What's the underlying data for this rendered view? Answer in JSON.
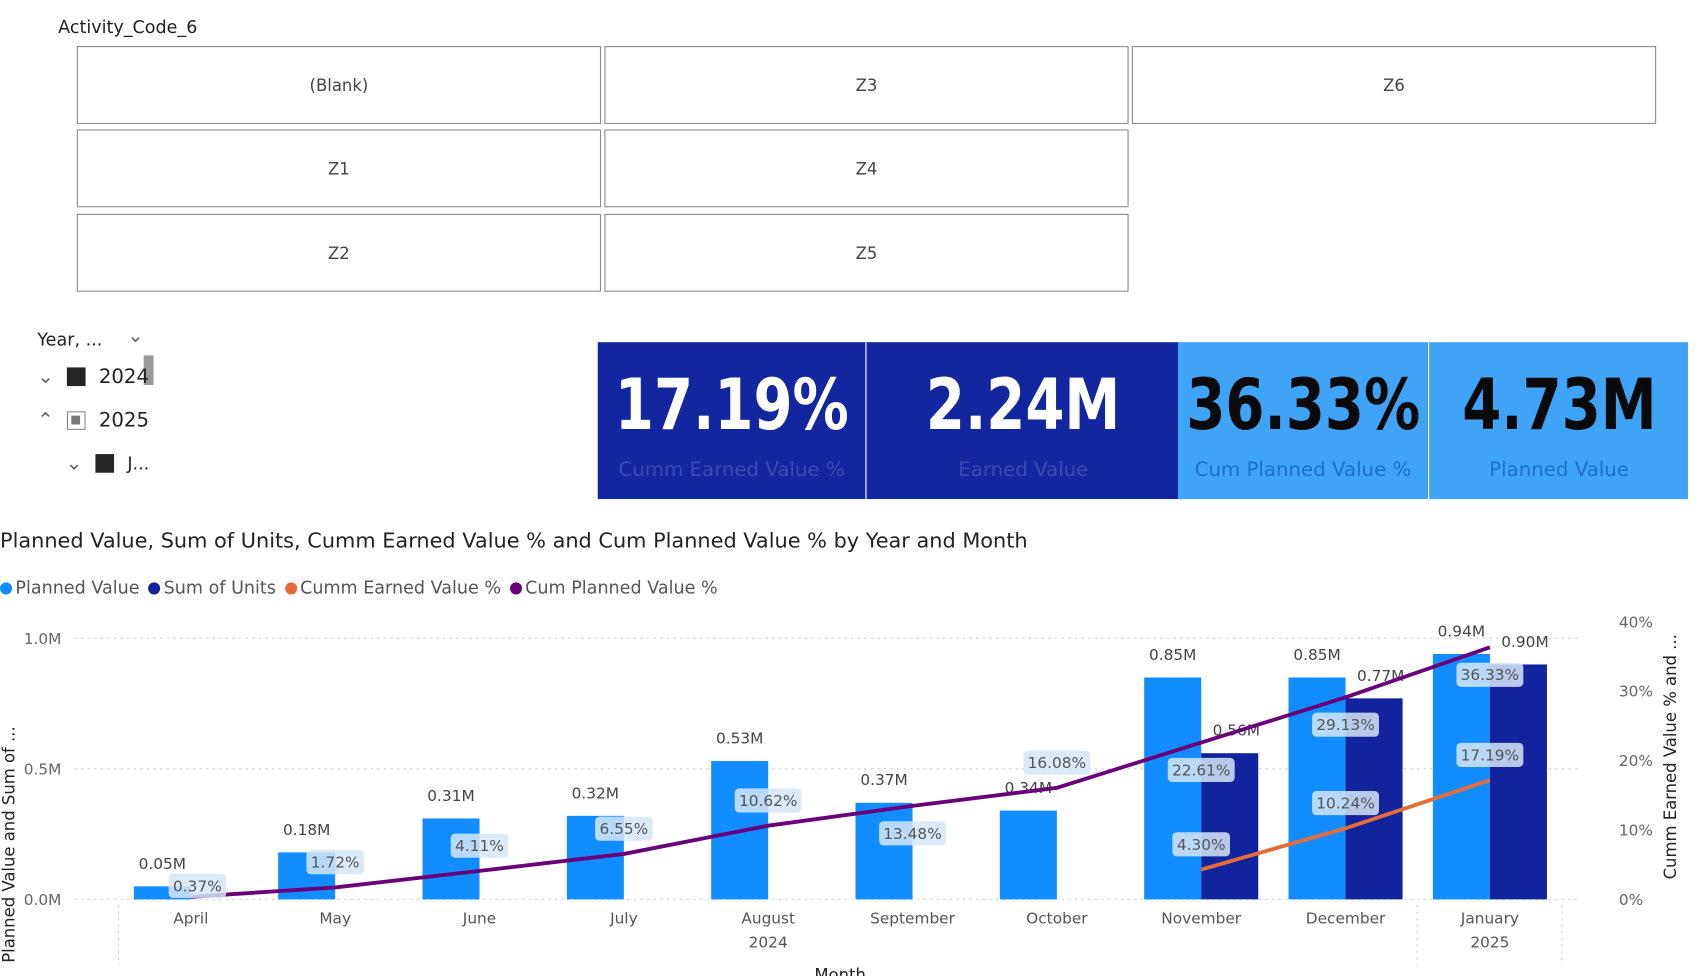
{
  "slicer": {
    "title": "Activity_Code_6",
    "items": [
      "(Blank)",
      "Z3",
      "Z6",
      "Z1",
      "Z4",
      "Z2",
      "Z5"
    ]
  },
  "hierarchy_slicer": {
    "title": "Year, ...",
    "items": [
      {
        "label": "2024",
        "state": "checked",
        "expanded": false
      },
      {
        "label": "2025",
        "state": "partial",
        "expanded": true
      },
      {
        "label": "J...",
        "state": "checked",
        "expanded": false
      }
    ]
  },
  "kpis": [
    {
      "value": "17.19%",
      "label": "Cumm Earned Value %"
    },
    {
      "value": "2.24M",
      "label": "Earned Value"
    },
    {
      "value": "36.33%",
      "label": "Cum Planned Value %"
    },
    {
      "value": "4.73M",
      "label": "Planned Value"
    }
  ],
  "colors": {
    "navy": "#1226A0",
    "light_blue": "#3FA3F7",
    "planned": "#118DFF",
    "units": "#12239E",
    "earned": "#E66C37",
    "cum_planned": "#6B007B"
  },
  "chart_data": {
    "type": "bar",
    "title": "Planned Value, Sum of Units, Cumm Earned Value % and Cum Planned Value % by Year and Month",
    "xlabel": "Month",
    "ylabel": "Planned Value and Sum of ...",
    "y2label": "Cumm Earned Value % and ...",
    "legend_position": "top-left",
    "categories": [
      "April",
      "May",
      "June",
      "July",
      "August",
      "September",
      "October",
      "November",
      "December",
      "January"
    ],
    "year_groups": [
      {
        "label": "2024",
        "span": 9
      },
      {
        "label": "2025",
        "span": 1
      }
    ],
    "ylim": [
      0,
      1.0
    ],
    "y_ticks": [
      "0.0M",
      "0.5M",
      "1.0M"
    ],
    "y2lim": [
      0,
      40
    ],
    "y2_ticks": [
      "0%",
      "10%",
      "20%",
      "30%",
      "40%"
    ],
    "series": [
      {
        "name": "Planned Value",
        "kind": "bar",
        "values": [
          0.05,
          0.18,
          0.31,
          0.32,
          0.53,
          0.37,
          0.34,
          0.85,
          0.85,
          0.94
        ],
        "labels": [
          "0.05M",
          "0.18M",
          "0.31M",
          "0.32M",
          "0.53M",
          "0.37M",
          "0.34M",
          "0.85M",
          "0.85M",
          "0.94M"
        ]
      },
      {
        "name": "Sum of Units",
        "kind": "bar",
        "values": [
          null,
          null,
          null,
          null,
          null,
          null,
          null,
          0.56,
          0.77,
          0.9
        ],
        "labels": [
          null,
          null,
          null,
          null,
          null,
          null,
          null,
          "0.56M",
          "0.77M",
          "0.90M"
        ]
      },
      {
        "name": "Cumm Earned Value %",
        "kind": "line",
        "values": [
          null,
          null,
          null,
          null,
          null,
          null,
          null,
          4.3,
          10.24,
          17.19
        ],
        "labels": [
          null,
          null,
          null,
          null,
          null,
          null,
          null,
          "4.30%",
          "10.24%",
          "17.19%"
        ]
      },
      {
        "name": "Cum Planned Value %",
        "kind": "line",
        "values": [
          0.37,
          1.72,
          4.11,
          6.55,
          10.62,
          13.48,
          16.08,
          22.61,
          29.13,
          36.33
        ],
        "labels": [
          "0.37%",
          "1.72%",
          "4.11%",
          "6.55%",
          "10.62%",
          "13.48%",
          "16.08%",
          "22.61%",
          "29.13%",
          "36.33%"
        ]
      }
    ]
  }
}
